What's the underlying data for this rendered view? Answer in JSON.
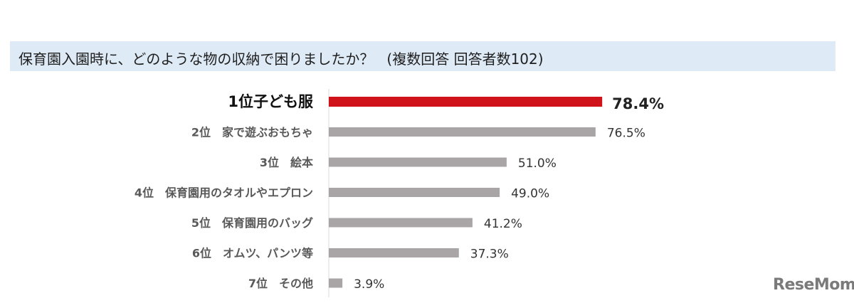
{
  "chart_data": {
    "type": "bar",
    "orientation": "horizontal",
    "title": "保育園入園時に、どのような物の収納で困りましたか？",
    "subtitle": "(複数回答 回答者数102)",
    "categories": [
      "1位子ども服",
      "2位　家で遊ぶおもちゃ",
      "3位　絵本",
      "4位　保育園用のタオルやエプロン",
      "5位　保育園用のバッグ",
      "6位　オムツ、パンツ等",
      "7位　その他"
    ],
    "values": [
      78.4,
      76.5,
      51.0,
      49.0,
      41.2,
      37.3,
      3.9
    ],
    "value_labels": [
      "78.4%",
      "76.5%",
      "51.0%",
      "49.0%",
      "41.2%",
      "37.3%",
      "3.9%"
    ],
    "xlim": [
      0,
      100
    ],
    "grid": false,
    "legend": "none",
    "colors": {
      "highlight": "#d0121b",
      "bar": "#a9a5a6",
      "title_band": "#deeaf6"
    }
  },
  "logo": {
    "text": "ReseMom"
  }
}
